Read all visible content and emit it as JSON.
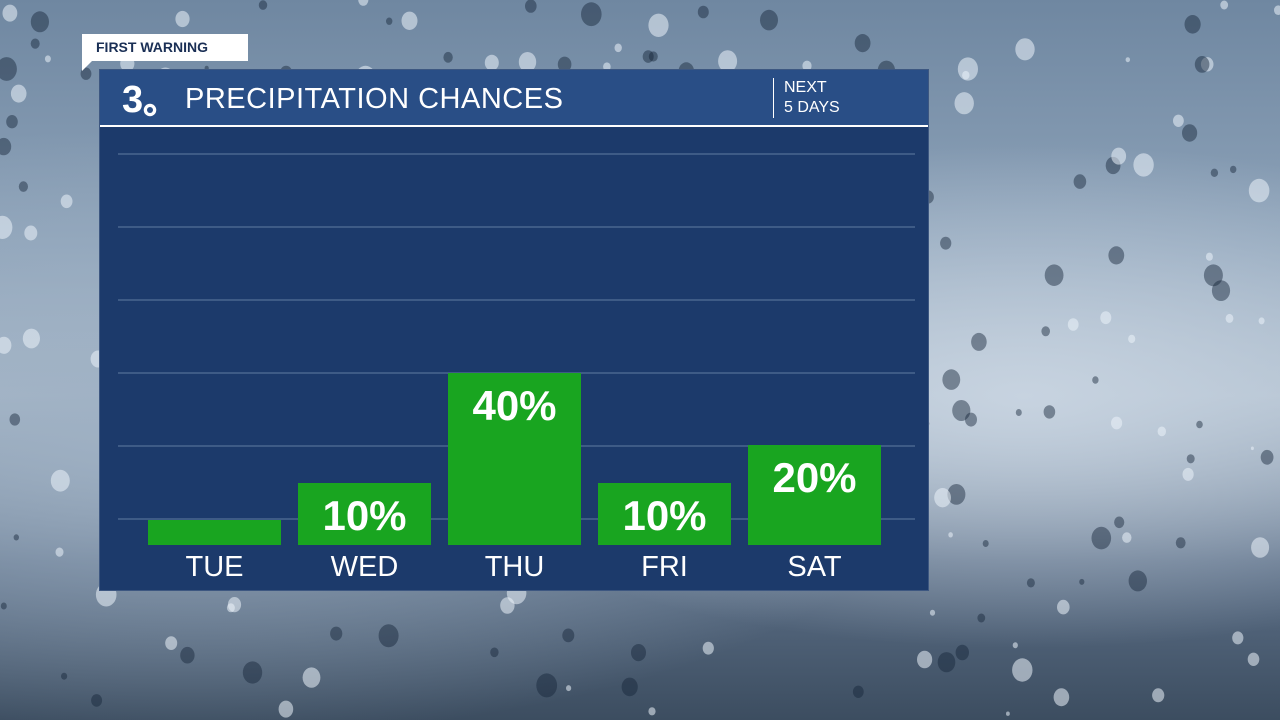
{
  "badge": "FIRST WARNING",
  "logo_text": "3",
  "header": {
    "title": "PRECIPITATION CHANCES",
    "next_line1": "NEXT",
    "next_line2": "5 DAYS"
  },
  "colors": {
    "panel": "#1c3a6b",
    "header": "#294e86",
    "bar": "#19a520",
    "grid": "#4a6690"
  },
  "chart_data": {
    "type": "bar",
    "title": "PRECIPITATION CHANCES",
    "categories": [
      "TUE",
      "WED",
      "THU",
      "FRI",
      "SAT"
    ],
    "values": [
      0,
      10,
      40,
      10,
      20
    ],
    "value_labels": [
      "",
      "10%",
      "40%",
      "10%",
      "20%"
    ],
    "ylim": [
      0,
      100
    ],
    "grid": true
  }
}
